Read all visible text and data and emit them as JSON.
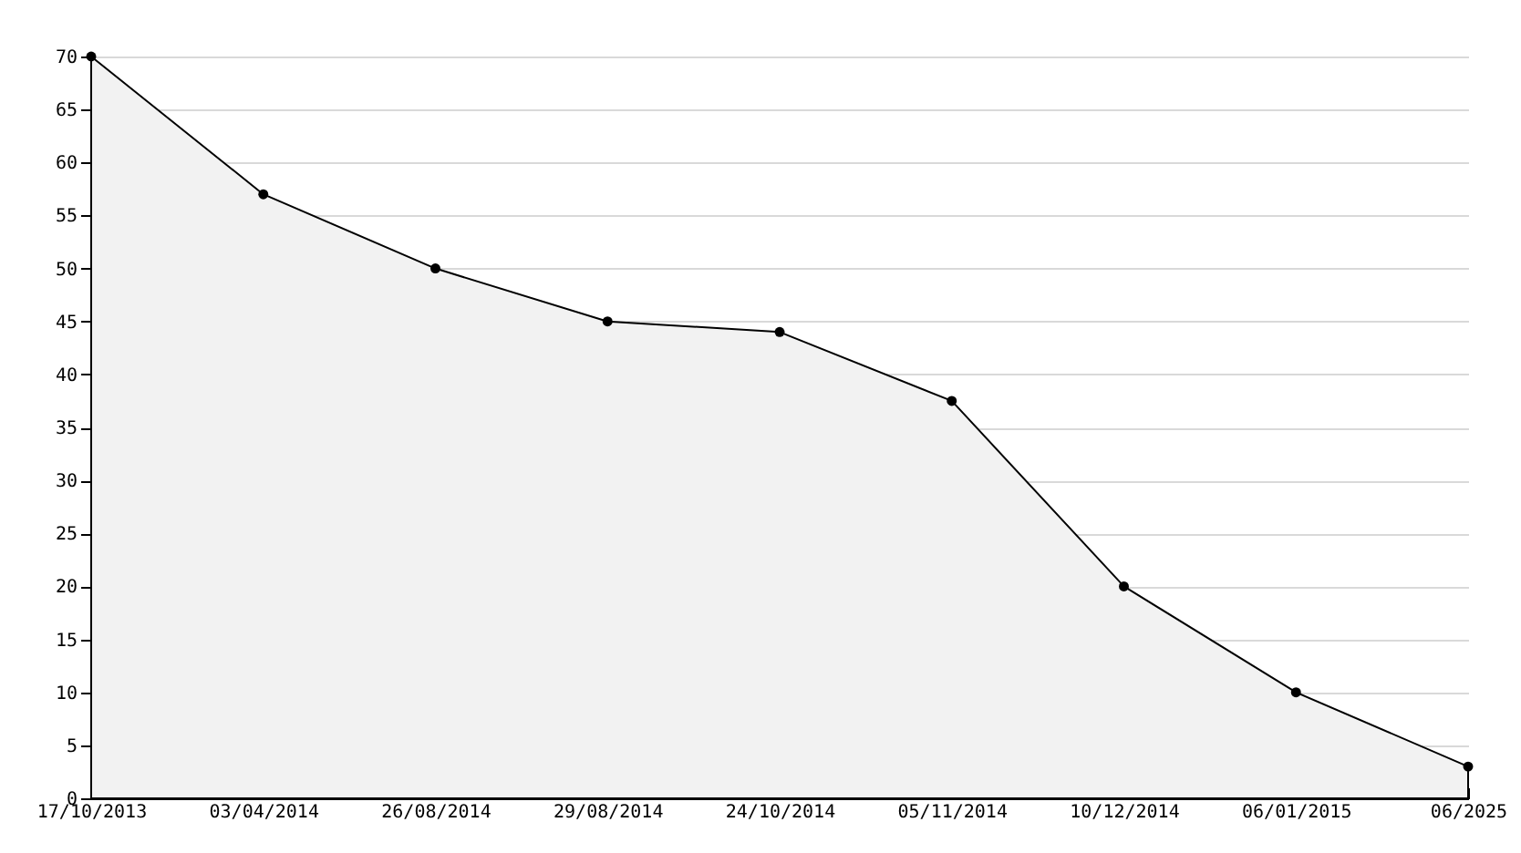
{
  "chart_data": {
    "type": "area",
    "categories": [
      "17/10/2013",
      "03/04/2014",
      "26/08/2014",
      "29/08/2014",
      "24/10/2014",
      "05/11/2014",
      "10/12/2014",
      "06/01/2015",
      "06/2025"
    ],
    "series": [
      {
        "color": "#f2f2f2",
        "values": [
          70,
          57,
          50,
          45,
          44,
          37.5,
          20,
          10,
          3
        ]
      }
    ],
    "ylim": [
      0,
      70
    ],
    "yticks": [
      0,
      5,
      10,
      15,
      20,
      25,
      30,
      35,
      40,
      45,
      50,
      55,
      60,
      65,
      70
    ],
    "grid": "y",
    "marker": "circle"
  }
}
